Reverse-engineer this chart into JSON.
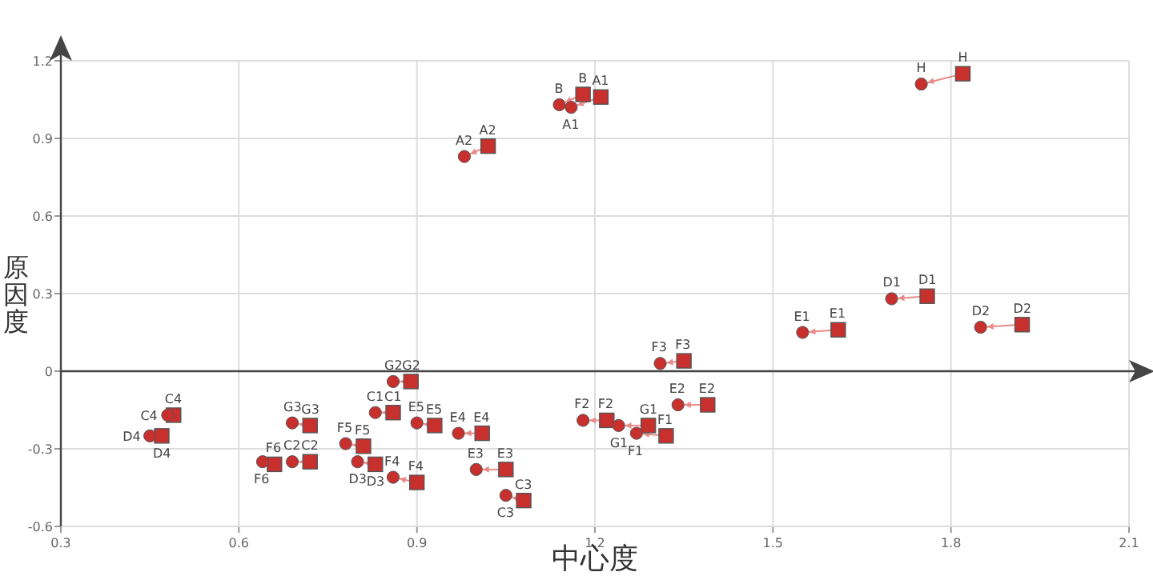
{
  "chart_data": {
    "type": "scatter",
    "xlabel": "中心度",
    "ylabel": "原因度",
    "xlim": [
      0.3,
      2.1
    ],
    "ylim": [
      -0.6,
      1.2
    ],
    "xticks": [
      0.3,
      0.6,
      0.9,
      1.2,
      1.5,
      1.8,
      2.1
    ],
    "yticks": [
      -0.6,
      -0.3,
      0,
      0.3,
      0.6,
      0.9,
      1.2
    ],
    "grid": true,
    "series": [
      {
        "color": "#c8302e",
        "marker": "square",
        "x": [
          1.21,
          1.18,
          1.02,
          1.82,
          1.76,
          1.92,
          1.61,
          1.35,
          1.39,
          1.22,
          1.29,
          1.32,
          0.89,
          0.86,
          0.93,
          1.01,
          1.05,
          1.08,
          0.81,
          0.83,
          0.9,
          0.49,
          0.47,
          0.72,
          0.72,
          0.66
        ],
        "values": [
          1.06,
          1.07,
          0.87,
          1.15,
          0.29,
          0.18,
          0.16,
          0.04,
          -0.13,
          -0.19,
          -0.21,
          -0.25,
          -0.04,
          -0.16,
          -0.21,
          -0.24,
          -0.38,
          -0.5,
          -0.29,
          -0.36,
          -0.43,
          -0.17,
          -0.25,
          -0.21,
          -0.35,
          -0.36
        ],
        "value_labels": [
          "A1",
          "B",
          "A2",
          "H",
          "D1",
          "D2",
          "E1",
          "F3",
          "E2",
          "F2",
          "G1",
          "F1",
          "G2",
          "C1",
          "E5",
          "E4",
          "E3",
          "C3",
          "F5",
          "D3",
          "F4",
          "C4",
          "D4",
          "G3",
          "C2",
          "F6"
        ]
      },
      {
        "color": "#c8302e",
        "marker": "circle",
        "x": [
          1.16,
          1.14,
          0.98,
          1.75,
          1.7,
          1.85,
          1.55,
          1.31,
          1.34,
          1.18,
          1.24,
          1.27,
          0.86,
          0.83,
          0.9,
          0.97,
          1.0,
          1.05,
          0.78,
          0.8,
          0.86,
          0.48,
          0.45,
          0.69,
          0.69,
          0.64
        ],
        "values": [
          1.02,
          1.03,
          0.83,
          1.11,
          0.28,
          0.17,
          0.15,
          0.03,
          -0.13,
          -0.19,
          -0.21,
          -0.24,
          -0.04,
          -0.16,
          -0.2,
          -0.24,
          -0.38,
          -0.48,
          -0.28,
          -0.35,
          -0.41,
          -0.17,
          -0.25,
          -0.2,
          -0.35,
          -0.35
        ],
        "value_labels": [
          "A1",
          "B",
          "A2",
          "H",
          "D1",
          "D2",
          "E1",
          "F3",
          "E2",
          "F2",
          "G1",
          "F1",
          "G2",
          "C1",
          "E5",
          "E4",
          "E3",
          "C3",
          "F5",
          "D3",
          "F4",
          "C4",
          "D4",
          "G3",
          "C2",
          "F6"
        ]
      }
    ]
  }
}
